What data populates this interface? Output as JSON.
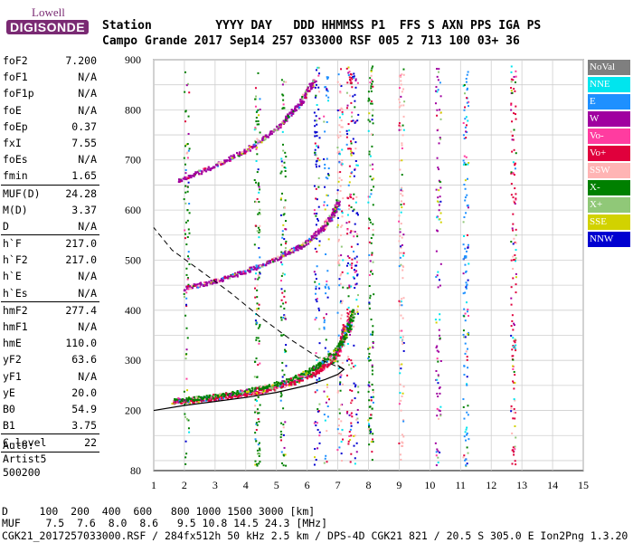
{
  "header": {
    "logo_top": "Lowell",
    "logo_bottom": "DIGISONDE",
    "line1": "Station         YYYY DAY   DDD HHMMSS P1  FFS S AXN PPS IGA PS",
    "line2": "Campo Grande 2017 Sep14 257 033000 RSF 005 2 713 100 03+ 36"
  },
  "params": [
    {
      "k": "foF2",
      "v": "7.200"
    },
    {
      "k": "foF1",
      "v": "N/A"
    },
    {
      "k": "foF1p",
      "v": "N/A"
    },
    {
      "k": "foE",
      "v": "N/A"
    },
    {
      "k": "foEp",
      "v": "0.37"
    },
    {
      "k": "fxI",
      "v": "7.55"
    },
    {
      "k": "foEs",
      "v": "N/A"
    },
    {
      "k": "fmin",
      "v": "1.65"
    },
    {
      "k": "MUF(D)",
      "v": "24.28"
    },
    {
      "k": "M(D)",
      "v": "3.37"
    },
    {
      "k": "D",
      "v": "N/A"
    },
    {
      "k": "h`F",
      "v": "217.0"
    },
    {
      "k": "h`F2",
      "v": "217.0"
    },
    {
      "k": "h`E",
      "v": "N/A"
    },
    {
      "k": "h`Es",
      "v": "N/A"
    },
    {
      "k": "hmF2",
      "v": "277.4"
    },
    {
      "k": "hmF1",
      "v": "N/A"
    },
    {
      "k": "hmE",
      "v": "110.0"
    },
    {
      "k": "yF2",
      "v": "63.6"
    },
    {
      "k": "yF1",
      "v": "N/A"
    },
    {
      "k": "yE",
      "v": "20.0"
    },
    {
      "k": "B0",
      "v": "54.9"
    },
    {
      "k": "B1",
      "v": "3.75"
    },
    {
      "k": "C-level",
      "v": "22"
    }
  ],
  "auto": [
    "Auto:",
    "Artist5",
    "500200"
  ],
  "legend": [
    {
      "label": "NoVal",
      "color": "#7f7f7f"
    },
    {
      "label": "NNE",
      "color": "#00e5ee"
    },
    {
      "label": "E",
      "color": "#1e90ff"
    },
    {
      "label": "W",
      "color": "#a000a0"
    },
    {
      "label": "Vo-",
      "color": "#ff3ca0"
    },
    {
      "label": "Vo+",
      "color": "#e0003c"
    },
    {
      "label": "SSW",
      "color": "#ffb4b4"
    },
    {
      "label": "X-",
      "color": "#008000"
    },
    {
      "label": "X+",
      "color": "#90c878"
    },
    {
      "label": "SSE",
      "color": "#d2d200"
    },
    {
      "label": "NNW",
      "color": "#0000d0"
    }
  ],
  "footer": {
    "d_line": "D     100  200  400  600   800 1000 1500 3000 [km]",
    "muf_line": "MUF    7.5  7.6  8.0  8.6   9.5 10.8 14.5 24.3 [MHz]",
    "file_line": "CGK21_2017257033000.RSF / 284fx512h 50 kHz 2.5 km / DPS-4D CGK21 821 / 20.5 S 305.0 E Ion2Png 1.3.20"
  },
  "chart_data": {
    "type": "scatter",
    "xlim": [
      1,
      15
    ],
    "ylim": [
      80,
      900
    ],
    "xticks": [
      1,
      2,
      3,
      4,
      5,
      6,
      7,
      8,
      9,
      10,
      11,
      12,
      13,
      14,
      15
    ],
    "yticks": [
      80,
      200,
      300,
      400,
      500,
      600,
      700,
      800,
      900
    ],
    "grid": true,
    "traces": [
      {
        "name": "o-trace F layer",
        "points": [
          [
            1.6,
            218
          ],
          [
            2.5,
            222
          ],
          [
            3.5,
            230
          ],
          [
            4.5,
            240
          ],
          [
            5.5,
            256
          ],
          [
            6.2,
            275
          ],
          [
            6.8,
            300
          ],
          [
            7.1,
            330
          ],
          [
            7.2,
            370
          ]
        ]
      },
      {
        "name": "x-trace F layer",
        "points": [
          [
            1.7,
            222
          ],
          [
            2.6,
            227
          ],
          [
            3.6,
            236
          ],
          [
            4.6,
            248
          ],
          [
            5.6,
            266
          ],
          [
            6.3,
            290
          ],
          [
            6.9,
            320
          ],
          [
            7.3,
            360
          ],
          [
            7.5,
            400
          ]
        ]
      },
      {
        "name": "2nd hop",
        "points": [
          [
            2.0,
            445
          ],
          [
            3.0,
            460
          ],
          [
            4.0,
            480
          ],
          [
            5.0,
            505
          ],
          [
            5.8,
            530
          ],
          [
            6.4,
            560
          ],
          [
            6.8,
            590
          ],
          [
            7.0,
            620
          ]
        ]
      },
      {
        "name": "3rd hop",
        "points": [
          [
            1.8,
            660
          ],
          [
            3.0,
            690
          ],
          [
            4.0,
            720
          ],
          [
            5.0,
            765
          ],
          [
            5.7,
            810
          ],
          [
            6.2,
            860
          ]
        ]
      },
      {
        "name": "profile solid",
        "points": [
          [
            1.0,
            200
          ],
          [
            2.0,
            210
          ],
          [
            3.0,
            218
          ],
          [
            4.0,
            226
          ],
          [
            5.0,
            236
          ],
          [
            6.0,
            250
          ],
          [
            6.6,
            262
          ],
          [
            7.0,
            272
          ],
          [
            7.2,
            282
          ],
          [
            7.0,
            290
          ]
        ]
      },
      {
        "name": "profile dashed",
        "points": [
          [
            7.2,
            282
          ],
          [
            6.5,
            300
          ],
          [
            5.5,
            340
          ],
          [
            4.5,
            385
          ],
          [
            3.5,
            435
          ],
          [
            2.5,
            480
          ],
          [
            1.6,
            520
          ],
          [
            1.0,
            565
          ]
        ]
      }
    ],
    "vertical_noise_freqs": [
      2.05,
      4.35,
      5.2,
      6.3,
      6.6,
      7.05,
      7.35,
      7.55,
      8.05,
      9.05,
      10.25,
      11.15,
      12.7
    ]
  }
}
